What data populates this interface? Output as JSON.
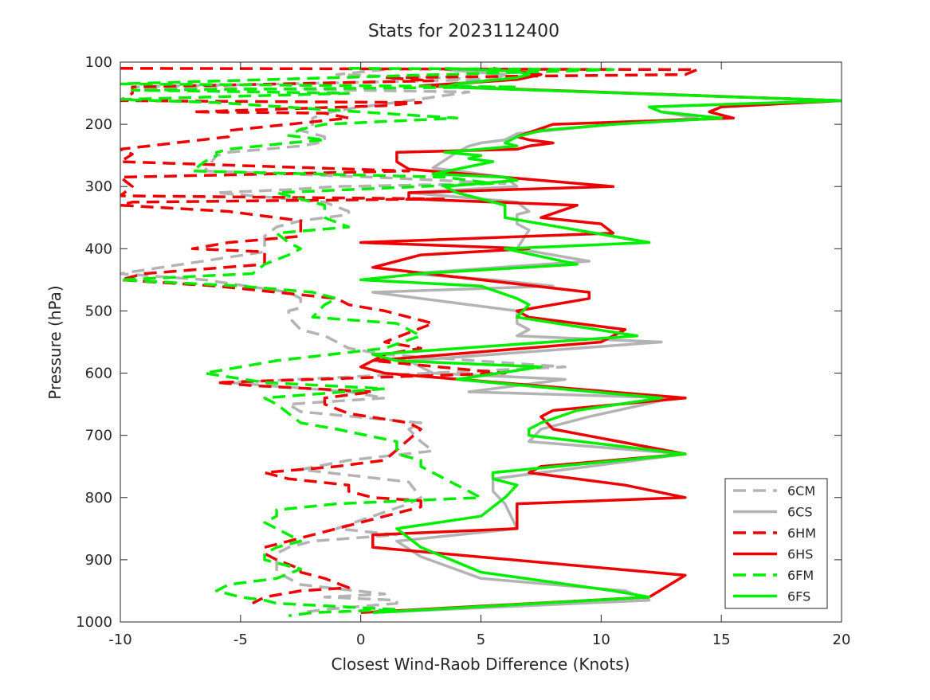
{
  "chart_data": {
    "type": "line",
    "title": "Stats for 2023112400",
    "xlabel": "Closest Wind-Raob Difference (Knots)",
    "ylabel": "Pressure (hPa)",
    "xlim": [
      -10,
      20
    ],
    "ylim": [
      100,
      1000
    ],
    "y_reversed": true,
    "grid": false,
    "legend_position": "bottom-right",
    "x_ticks": [
      "-10",
      "-5",
      "0",
      "5",
      "10",
      "15",
      "20"
    ],
    "y_ticks": [
      "100",
      "200",
      "300",
      "400",
      "500",
      "600",
      "700",
      "800",
      "900",
      "1000"
    ],
    "series": [
      {
        "name": "6CM",
        "color": "#b3b3b3",
        "dash": true,
        "x": [
          1.0,
          -1.0,
          5.5,
          -9.5,
          4.5,
          2.0,
          -0.5,
          -1.5,
          -2.0,
          -2.0,
          -2.5,
          -1.5,
          -1.5,
          -2.5,
          -5.5,
          -6.0,
          -6.5,
          0.5,
          6.0,
          -1.0,
          -3.0,
          -6.0,
          -1.5,
          -0.5,
          -0.5,
          -2.5,
          -3.5,
          -4.0,
          -4.0,
          -4.0,
          -10.0,
          -6.5,
          -3.0,
          -2.5,
          -2.5,
          -3.0,
          -3.0,
          -2.5,
          -1.5,
          -0.5,
          1.0,
          8.5,
          -5.5,
          -0.5,
          1.0,
          -3.0,
          -2.5,
          2.5,
          2.0,
          2.5,
          3.0,
          -0.5,
          -2.5,
          2.0,
          2.5,
          2.0,
          0.5,
          -1.0,
          1.5,
          -2.0,
          -3.0,
          -3.5,
          -3.5,
          -3.5,
          -2.5,
          1.0,
          -1.5,
          1.5,
          1.5,
          -1.5,
          -2.5
        ],
        "y": [
          112,
          120,
          128,
          140,
          148,
          162,
          175,
          182,
          190,
          200,
          210,
          220,
          228,
          235,
          245,
          250,
          275,
          285,
          295,
          300,
          305,
          310,
          325,
          340,
          345,
          355,
          365,
          380,
          390,
          405,
          440,
          450,
          470,
          480,
          495,
          500,
          510,
          530,
          540,
          560,
          570,
          590,
          615,
          630,
          640,
          650,
          662,
          680,
          690,
          710,
          725,
          740,
          755,
          775,
          800,
          810,
          830,
          850,
          860,
          870,
          880,
          890,
          905,
          920,
          940,
          955,
          960,
          965,
          970,
          980,
          985
        ]
      },
      {
        "name": "6CS",
        "color": "#b3b3b3",
        "dash": false,
        "x": [
          3.5,
          6.0,
          5.5,
          3.5,
          20.0,
          12.0,
          12.5,
          14.0,
          10.5,
          6.5,
          6.0,
          5.0,
          4.5,
          4.0,
          3.0,
          6.0,
          6.5,
          2.0,
          6.5,
          7.0,
          6.5,
          6.5,
          7.0,
          6.5,
          9.5,
          2.0,
          5.5,
          8.0,
          0.5,
          2.5,
          6.5,
          6.5,
          7.0,
          6.5,
          12.5,
          2.0,
          3.0,
          8.5,
          4.5,
          13.0,
          9.5,
          7.5,
          7.0,
          13.5,
          5.5,
          5.5,
          6.0,
          6.5,
          1.5,
          2.5,
          5.0,
          11.0,
          12.0,
          0.5
        ],
        "y": [
          112,
          120,
          128,
          140,
          162,
          172,
          180,
          190,
          200,
          215,
          225,
          230,
          235,
          245,
          270,
          285,
          300,
          310,
          325,
          340,
          345,
          360,
          370,
          400,
          420,
          440,
          450,
          460,
          470,
          480,
          500,
          520,
          530,
          540,
          550,
          580,
          600,
          610,
          630,
          640,
          670,
          690,
          710,
          730,
          770,
          790,
          810,
          850,
          870,
          895,
          930,
          950,
          965,
          985
        ]
      },
      {
        "name": "6HM",
        "color": "#ee0000",
        "dash": true,
        "x": [
          -10.0,
          14.0,
          13.5,
          1.0,
          3.0,
          -9.5,
          -9.5,
          -10.0,
          2.5,
          1.0,
          -7.0,
          -1.5,
          -0.5,
          -3.0,
          -5.5,
          -5.5,
          -10.0,
          -9.5,
          -10.0,
          2.0,
          -10.0,
          -9.5,
          -10.0,
          3.5,
          -9.5,
          -10.0,
          -5.5,
          -3.5,
          -2.5,
          -2.5,
          -2.5,
          -5.5,
          -7.0,
          -4.0,
          -4.0,
          -9.0,
          -10.0,
          -6.0,
          -3.5,
          -1.0,
          -0.5,
          1.0,
          3.0,
          1.0,
          2.5,
          1.0,
          0.5,
          6.0,
          -6.0,
          -4.5,
          0.5,
          -1.5,
          -1.5,
          -0.5,
          2.0,
          2.5,
          1.0,
          -1.0,
          -2.5,
          -4.0,
          -3.0,
          -0.5,
          -0.5,
          0.5,
          2.5,
          2.5,
          -4.0,
          -4.0,
          -3.5,
          -2.5,
          -2.5,
          -1.5,
          -0.5,
          -2.5,
          -4.0,
          -4.5
        ],
        "y": [
          110,
          112,
          120,
          125,
          130,
          140,
          150,
          162,
          165,
          170,
          180,
          182,
          190,
          200,
          210,
          220,
          240,
          248,
          260,
          275,
          285,
          300,
          315,
          320,
          325,
          330,
          340,
          350,
          355,
          360,
          380,
          390,
          400,
          405,
          425,
          440,
          450,
          460,
          470,
          480,
          490,
          500,
          520,
          550,
          560,
          570,
          580,
          600,
          615,
          620,
          630,
          640,
          650,
          665,
          680,
          690,
          740,
          750,
          755,
          760,
          770,
          780,
          790,
          800,
          805,
          815,
          880,
          890,
          900,
          915,
          920,
          930,
          945,
          950,
          960,
          970
        ]
      },
      {
        "name": "6HS",
        "color": "#ee0000",
        "dash": false,
        "x": [
          5.5,
          7.5,
          6.5,
          2.5,
          20.0,
          15.0,
          14.5,
          15.5,
          8.0,
          6.5,
          7.0,
          8.0,
          7.0,
          6.5,
          1.5,
          1.5,
          2.0,
          10.5,
          2.0,
          2.0,
          9.0,
          7.5,
          10.0,
          10.5,
          0.0,
          7.0,
          2.5,
          1.5,
          0.5,
          9.5,
          9.5,
          6.5,
          7.0,
          11.0,
          10.0,
          0.5,
          0.0,
          1.0,
          13.5,
          8.0,
          7.5,
          8.0,
          13.5,
          7.5,
          7.0,
          11.0,
          13.5,
          6.5,
          6.5,
          0.5,
          0.5,
          13.5,
          12.0,
          0.0
        ],
        "y": [
          110,
          120,
          128,
          138,
          162,
          172,
          180,
          190,
          200,
          220,
          225,
          230,
          235,
          240,
          245,
          260,
          272,
          300,
          310,
          320,
          330,
          350,
          360,
          375,
          390,
          400,
          410,
          420,
          430,
          470,
          480,
          500,
          510,
          530,
          550,
          580,
          590,
          600,
          640,
          660,
          670,
          690,
          730,
          750,
          760,
          780,
          800,
          810,
          850,
          860,
          880,
          925,
          960,
          985
        ]
      },
      {
        "name": "6FM",
        "color": "#00ee00",
        "dash": true,
        "x": [
          -0.5,
          10.5,
          -10.0,
          6.5,
          -9.5,
          -0.5,
          -10.0,
          -6.0,
          4.0,
          -1.5,
          -2.5,
          -3.0,
          -1.5,
          -3.0,
          -5.5,
          -6.0,
          -6.0,
          -6.5,
          -7.0,
          3.5,
          5.5,
          -3.5,
          -2.5,
          -1.5,
          -1.5,
          -0.5,
          -3.5,
          -3.0,
          -2.5,
          -3.0,
          -4.0,
          -4.5,
          -10.0,
          -5.0,
          -2.0,
          -1.0,
          -1.5,
          -2.0,
          1.5,
          2.5,
          1.0,
          -3.5,
          -6.5,
          -4.0,
          1.0,
          -4.0,
          -3.5,
          -3.0,
          -2.5,
          -1.0,
          1.5,
          1.5,
          2.5,
          2.5,
          5.0,
          -1.0,
          -3.5,
          -3.5,
          -4.0,
          -3.5,
          -3.0,
          -2.5,
          -3.5,
          -4.0,
          -4.0,
          -2.5,
          -3.5,
          -5.5,
          -6.0,
          -5.0,
          -4.0,
          -3.5,
          1.5,
          -2.0,
          -3.0
        ],
        "y": [
          110,
          112,
          135,
          140,
          145,
          150,
          160,
          165,
          190,
          200,
          208,
          218,
          225,
          230,
          240,
          245,
          250,
          260,
          275,
          285,
          295,
          310,
          320,
          330,
          350,
          365,
          375,
          390,
          400,
          410,
          425,
          440,
          450,
          460,
          470,
          480,
          490,
          510,
          520,
          540,
          560,
          580,
          600,
          615,
          625,
          640,
          650,
          665,
          680,
          690,
          710,
          730,
          740,
          750,
          800,
          810,
          820,
          830,
          840,
          850,
          860,
          870,
          880,
          890,
          900,
          915,
          930,
          940,
          950,
          960,
          965,
          970,
          980,
          985,
          990
        ]
      },
      {
        "name": "6FS",
        "color": "#00ee00",
        "dash": false,
        "x": [
          3.5,
          6.5,
          7.0,
          6.5,
          4.0,
          3.5,
          20.0,
          12.0,
          12.5,
          15.0,
          10.5,
          7.5,
          6.5,
          6.0,
          6.5,
          3.5,
          5.0,
          4.5,
          5.5,
          3.0,
          6.0,
          6.5,
          3.5,
          4.0,
          5.0,
          6.0,
          6.0,
          12.0,
          6.0,
          9.0,
          2.5,
          0.0,
          5.0,
          6.5,
          7.0,
          6.5,
          11.5,
          0.5,
          1.5,
          7.5,
          4.0,
          12.5,
          9.0,
          7.5,
          7.0,
          7.0,
          13.5,
          5.5,
          5.5,
          6.5,
          6.0,
          5.0,
          1.5,
          2.5,
          5.0,
          10.5,
          12.0,
          12.0,
          0.5
        ],
        "y": [
          110,
          115,
          120,
          125,
          135,
          140,
          162,
          172,
          180,
          190,
          200,
          210,
          220,
          230,
          235,
          245,
          250,
          255,
          260,
          280,
          285,
          290,
          300,
          310,
          320,
          330,
          350,
          390,
          400,
          425,
          440,
          450,
          460,
          480,
          490,
          510,
          540,
          570,
          580,
          590,
          610,
          640,
          660,
          680,
          690,
          700,
          730,
          760,
          770,
          780,
          800,
          830,
          850,
          880,
          920,
          950,
          960,
          960,
          985
        ]
      }
    ]
  }
}
